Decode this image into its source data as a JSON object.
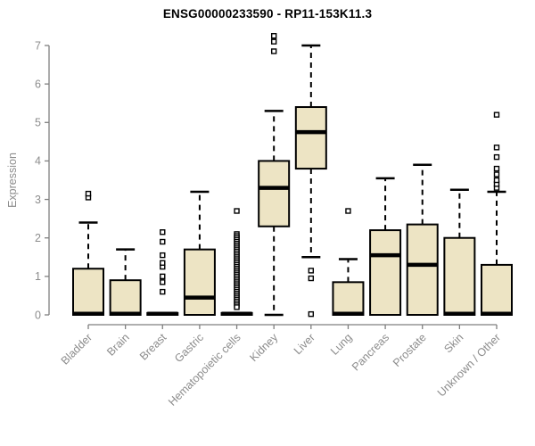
{
  "title": "ENSG00000233590 - RP11-153K11.3",
  "chart_data": {
    "type": "boxplot",
    "title": "ENSG00000233590 - RP11-153K11.3",
    "xlabel": "",
    "ylabel": "Expression",
    "ylim": [
      0,
      7
    ],
    "yticks": [
      0,
      1,
      2,
      3,
      4,
      5,
      6,
      7
    ],
    "grid": "off",
    "legend": "none",
    "categories": [
      "Bladder",
      "Brain",
      "Breast",
      "Gastric",
      "Hematopoietic cells",
      "Kidney",
      "Liver",
      "Lung",
      "Pancreas",
      "Prostate",
      "Skin",
      "Unknown / Other"
    ],
    "boxes": [
      {
        "category": "Bladder",
        "whisker_low": 0,
        "q1": 0,
        "median": 0.03,
        "q3": 1.2,
        "whisker_high": 2.4,
        "outliers": [
          3.05,
          3.15
        ]
      },
      {
        "category": "Brain",
        "whisker_low": 0,
        "q1": 0,
        "median": 0.03,
        "q3": 0.9,
        "whisker_high": 1.7,
        "outliers": []
      },
      {
        "category": "Breast",
        "whisker_low": 0,
        "q1": 0,
        "median": 0.03,
        "q3": 0.05,
        "whisker_high": 0.05,
        "outliers": [
          0.6,
          0.85,
          1.0,
          1.25,
          1.35,
          1.55,
          1.9,
          2.15
        ]
      },
      {
        "category": "Gastric",
        "whisker_low": 0,
        "q1": 0,
        "median": 0.45,
        "q3": 1.7,
        "whisker_high": 3.2,
        "outliers": []
      },
      {
        "category": "Hematopoietic cells",
        "whisker_low": 0,
        "q1": 0,
        "median": 0.03,
        "q3": 0.05,
        "whisker_high": 0.05,
        "outliers": [
          2.7,
          2.1,
          2.05,
          2.0,
          1.95,
          1.9,
          1.85,
          1.8,
          1.75,
          1.7,
          1.65,
          1.6,
          1.55,
          1.5,
          1.45,
          1.4,
          1.35,
          1.3,
          1.25,
          1.2,
          1.15,
          1.1,
          1.05,
          1.0,
          0.95,
          0.9,
          0.85,
          0.8,
          0.75,
          0.7,
          0.65,
          0.6,
          0.55,
          0.5,
          0.45,
          0.4,
          0.35,
          0.3,
          0.25,
          0.2
        ]
      },
      {
        "category": "Kidney",
        "whisker_low": 0,
        "q1": 2.3,
        "median": 3.3,
        "q3": 4.0,
        "whisker_high": 5.3,
        "outliers": [
          6.85,
          7.1,
          7.25
        ]
      },
      {
        "category": "Liver",
        "whisker_low": 1.5,
        "q1": 3.8,
        "median": 4.75,
        "q3": 5.4,
        "whisker_high": 7.0,
        "outliers": [
          1.15,
          0.95,
          0.02
        ]
      },
      {
        "category": "Lung",
        "whisker_low": 0,
        "q1": 0,
        "median": 0.03,
        "q3": 0.85,
        "whisker_high": 1.45,
        "outliers": [
          2.7
        ]
      },
      {
        "category": "Pancreas",
        "whisker_low": 0,
        "q1": 0,
        "median": 1.55,
        "q3": 2.2,
        "whisker_high": 3.55,
        "outliers": []
      },
      {
        "category": "Prostate",
        "whisker_low": 0,
        "q1": 0,
        "median": 1.3,
        "q3": 2.35,
        "whisker_high": 3.9,
        "outliers": []
      },
      {
        "category": "Skin",
        "whisker_low": 0,
        "q1": 0,
        "median": 0.03,
        "q3": 2.0,
        "whisker_high": 3.25,
        "outliers": []
      },
      {
        "category": "Unknown / Other",
        "whisker_low": 0,
        "q1": 0,
        "median": 0.03,
        "q3": 1.3,
        "whisker_high": 3.2,
        "outliers": [
          3.3,
          3.4,
          3.5,
          3.65,
          3.8,
          4.1,
          4.35,
          5.2
        ]
      }
    ],
    "colors": {
      "box_fill": "#EDE4C4",
      "box_stroke": "#000000",
      "median": "#000000",
      "whisker": "#000000",
      "outlier_fill": "#FFFFFF",
      "outlier_stroke": "#000000",
      "axis": "#7F7F7F",
      "tick_label": "#8C8C8C",
      "title": "#000000",
      "background": "#FFFFFF"
    }
  }
}
